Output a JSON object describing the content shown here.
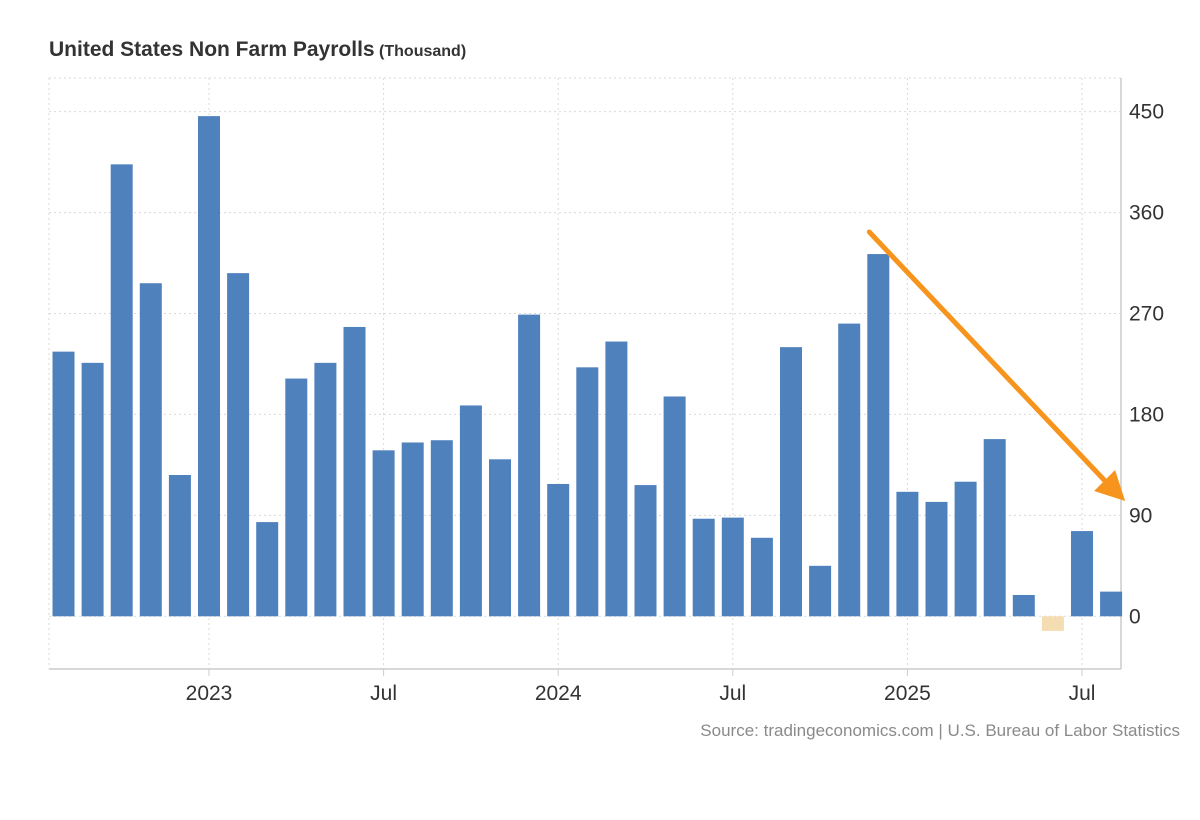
{
  "title": {
    "main": "United States Non Farm Payrolls",
    "unit": "(Thousand)"
  },
  "source": "Source: tradingeconomics.com | U.S. Bureau of Labor Statistics",
  "colors": {
    "bar": "#4f81bd",
    "negative_bar": "#f4ddb0",
    "arrow": "#f7941d",
    "grid": "#d9d9d9",
    "axis": "#cccccc"
  },
  "chart_data": {
    "type": "bar",
    "title": "United States Non Farm Payrolls",
    "unit": "Thousand",
    "ylim": [
      -47,
      480
    ],
    "y_ticks": [
      0,
      90,
      180,
      270,
      360,
      450
    ],
    "y_axis_position": "right",
    "grid": true,
    "x_tick_labels": [
      {
        "label": "2023",
        "index": 5
      },
      {
        "label": "Jul",
        "index": 11
      },
      {
        "label": "2024",
        "index": 17
      },
      {
        "label": "Jul",
        "index": 23
      },
      {
        "label": "2025",
        "index": 29
      },
      {
        "label": "Jul",
        "index": 35
      }
    ],
    "categories": [
      "2022-08",
      "2022-09",
      "2022-10",
      "2022-11",
      "2022-12",
      "2023-01",
      "2023-02",
      "2023-03",
      "2023-04",
      "2023-05",
      "2023-06",
      "2023-07",
      "2023-08",
      "2023-09",
      "2023-10",
      "2023-11",
      "2023-12",
      "2024-01",
      "2024-02",
      "2024-03",
      "2024-04",
      "2024-05",
      "2024-06",
      "2024-07",
      "2024-08",
      "2024-09",
      "2024-10",
      "2024-11",
      "2024-12",
      "2025-01",
      "2025-02",
      "2025-03",
      "2025-04",
      "2025-05",
      "2025-06",
      "2025-07",
      "2025-08"
    ],
    "values": [
      236,
      226,
      403,
      297,
      126,
      446,
      306,
      84,
      212,
      226,
      258,
      148,
      155,
      157,
      188,
      140,
      269,
      118,
      222,
      245,
      117,
      196,
      87,
      88,
      70,
      240,
      45,
      261,
      323,
      111,
      102,
      120,
      158,
      19,
      -13,
      76,
      22
    ],
    "annotations": [
      {
        "type": "arrow",
        "direction": "down-right",
        "from_index": 28,
        "to_index": 36
      }
    ]
  }
}
